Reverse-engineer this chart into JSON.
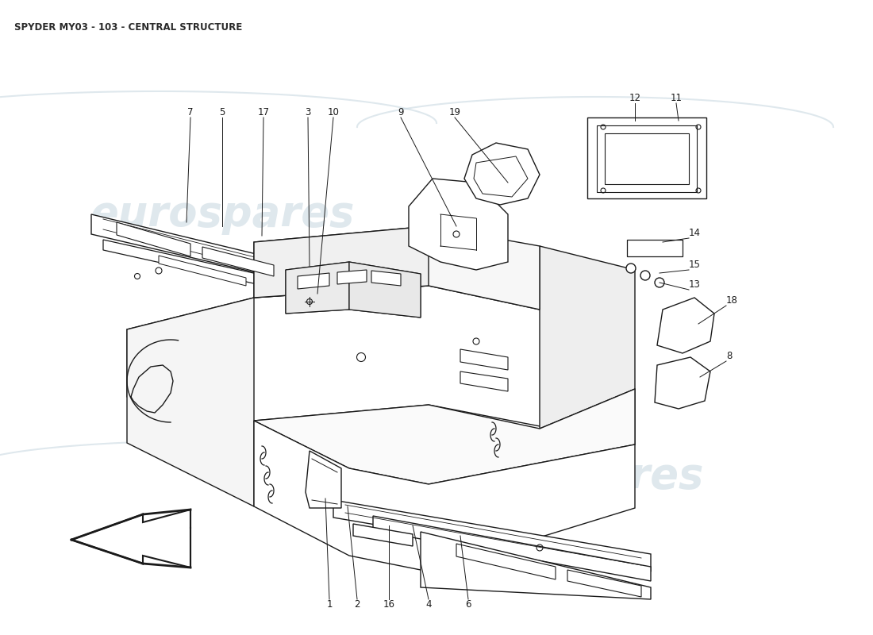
{
  "title": "SPYDER MY03 - 103 - CENTRAL STRUCTURE",
  "title_fontsize": 8.5,
  "title_color": "#2a2a2a",
  "background_color": "#ffffff",
  "lc": "#1a1a1a",
  "watermark_color": "#b8ccd8",
  "watermark_alpha": 0.45,
  "label_fontsize": 8.5,
  "fig_width": 11.0,
  "fig_height": 8.0,
  "dpi": 100
}
